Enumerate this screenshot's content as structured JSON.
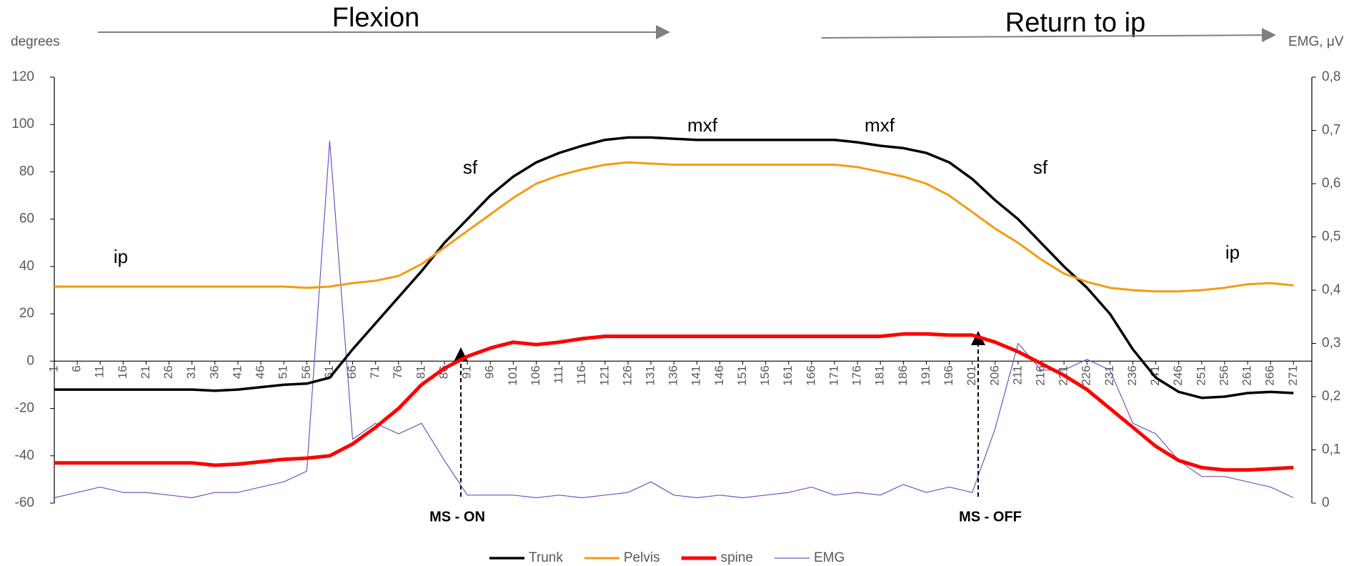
{
  "chart_data": {
    "type": "line",
    "y_label": "degrees",
    "y2_label": "EMG, μV",
    "phases": [
      "Flexion",
      "Return to ip"
    ],
    "markers": [
      "MS - ON",
      "MS - OFF"
    ],
    "posture_labels": [
      "ip",
      "sf",
      "mxf",
      "mxf",
      "sf",
      "ip"
    ],
    "x": [
      1,
      6,
      11,
      16,
      21,
      26,
      31,
      36,
      41,
      46,
      51,
      56,
      61,
      66,
      71,
      76,
      81,
      86,
      91,
      96,
      101,
      106,
      111,
      116,
      121,
      126,
      131,
      136,
      141,
      146,
      151,
      156,
      161,
      166,
      171,
      176,
      181,
      186,
      191,
      196,
      201,
      206,
      211,
      216,
      221,
      226,
      231,
      236,
      241,
      246,
      251,
      256,
      261,
      266,
      271
    ],
    "xlim": [
      1,
      275
    ],
    "xticks": [
      1,
      6,
      11,
      16,
      21,
      26,
      31,
      36,
      41,
      46,
      51,
      56,
      61,
      66,
      71,
      76,
      81,
      86,
      91,
      96,
      101,
      106,
      111,
      116,
      121,
      126,
      131,
      136,
      141,
      146,
      151,
      156,
      161,
      166,
      171,
      176,
      181,
      186,
      191,
      196,
      201,
      206,
      211,
      216,
      221,
      226,
      231,
      236,
      241,
      246,
      251,
      256,
      261,
      266,
      271
    ],
    "ylim": [
      -60,
      120
    ],
    "yticks": [
      -60,
      -40,
      -20,
      0,
      20,
      40,
      60,
      80,
      100,
      120
    ],
    "y2lim": [
      0,
      0.8
    ],
    "y2ticks": [
      0,
      {
        "value": 0.1,
        "label": "0,1"
      },
      {
        "value": 0.2,
        "label": "0,2"
      },
      {
        "value": 0.3,
        "label": "0,3"
      },
      {
        "value": 0.4,
        "label": "0,4"
      },
      {
        "value": 0.5,
        "label": "0,5"
      },
      {
        "value": 0.6,
        "label": "0,6"
      },
      {
        "value": 0.7,
        "label": "0,7"
      },
      {
        "value": 0.8,
        "label": "0,8"
      }
    ],
    "legend": "bottom",
    "series": [
      {
        "name": "Trunk",
        "color": "#000000",
        "width": 3.5,
        "values": [
          -12,
          -12,
          -12,
          -12,
          -12,
          -12,
          -12,
          -12.5,
          -12,
          -11,
          -10,
          -9.5,
          -7,
          5,
          16,
          27,
          38,
          50,
          60,
          70,
          78,
          84,
          88,
          91,
          93.5,
          94.5,
          94.5,
          94,
          93.5,
          93.5,
          93.5,
          93.5,
          93.5,
          93.5,
          93.5,
          92.5,
          91,
          90,
          88,
          84,
          77,
          68,
          60,
          50,
          40,
          31,
          20,
          5,
          -7,
          -13,
          -15.5,
          -15,
          -13.5,
          -13,
          -13.5
        ]
      },
      {
        "name": "Pelvis",
        "color": "#f59b12",
        "width": 3,
        "values": [
          31.5,
          31.5,
          31.5,
          31.5,
          31.5,
          31.5,
          31.5,
          31.5,
          31.5,
          31.5,
          31.5,
          31,
          31.5,
          33,
          34,
          36,
          41,
          48,
          55,
          62,
          69,
          75,
          78.5,
          81,
          83,
          84,
          83.5,
          83,
          83,
          83,
          83,
          83,
          83,
          83,
          83,
          82,
          80,
          78,
          75,
          70,
          63,
          56,
          50,
          43,
          37,
          33.5,
          31,
          30,
          29.5,
          29.5,
          30,
          31,
          32.5,
          33,
          32
        ]
      },
      {
        "name": "spine",
        "color": "#ff0000",
        "width": 5,
        "values": [
          -43,
          -43,
          -43,
          -43,
          -43,
          -43,
          -43,
          -44,
          -43.5,
          -42.5,
          -41.5,
          -41,
          -40,
          -35,
          -28,
          -20,
          -10,
          -3,
          2,
          5.5,
          8,
          7,
          8,
          9.5,
          10.5,
          10.5,
          10.5,
          10.5,
          10.5,
          10.5,
          10.5,
          10.5,
          10.5,
          10.5,
          10.5,
          10.5,
          10.5,
          11.5,
          11.5,
          11,
          11,
          8,
          4,
          -1,
          -6,
          -12,
          -20,
          -28,
          -36,
          -42,
          -45,
          -46,
          -46,
          -45.5,
          -45
        ]
      },
      {
        "name": "EMG",
        "color": "#7a4fc0",
        "width": 1.2,
        "axis": "y2",
        "values": [
          0.01,
          0.02,
          0.03,
          0.02,
          0.02,
          0.015,
          0.01,
          0.02,
          0.02,
          0.03,
          0.04,
          0.06,
          0.68,
          0.12,
          0.15,
          0.13,
          0.15,
          0.08,
          0.015,
          0.015,
          0.015,
          0.01,
          0.015,
          0.01,
          0.015,
          0.02,
          0.04,
          0.015,
          0.01,
          0.015,
          0.01,
          0.015,
          0.02,
          0.03,
          0.015,
          0.02,
          0.015,
          0.035,
          0.02,
          0.03,
          0.02,
          0.14,
          0.3,
          0.25,
          0.25,
          0.27,
          0.25,
          0.15,
          0.13,
          0.08,
          0.05,
          0.05,
          0.04,
          0.03,
          0.01
        ]
      }
    ]
  }
}
